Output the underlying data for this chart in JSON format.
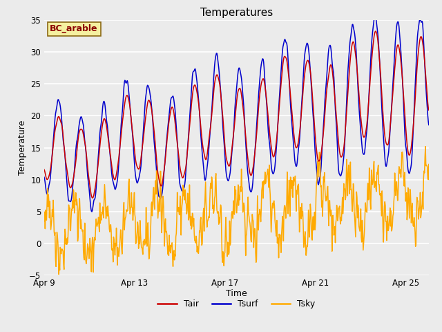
{
  "title": "Temperatures",
  "xlabel": "Time",
  "ylabel": "Temperature",
  "annotation_text": "BC_arable",
  "annotation_bg": "#f5f0a0",
  "annotation_border": "#8b6914",
  "annotation_text_color": "#8b0000",
  "ylim": [
    -5,
    35
  ],
  "xlim": [
    0,
    17
  ],
  "x_ticks_labels": [
    "Apr 9",
    "Apr 13",
    "Apr 17",
    "Apr 21",
    "Apr 25"
  ],
  "x_ticks_positions": [
    0,
    4,
    8,
    12,
    16
  ],
  "y_ticks": [
    -5,
    0,
    5,
    10,
    15,
    20,
    25,
    30,
    35
  ],
  "bg_color": "#ebebeb",
  "grid_color": "#ffffff",
  "tair_color": "#cc0000",
  "tsurf_color": "#0000cc",
  "tsky_color": "#ffaa00",
  "legend_entries": [
    "Tair",
    "Tsurf",
    "Tsky"
  ],
  "title_fontsize": 11,
  "axis_label_fontsize": 9,
  "tick_fontsize": 8.5
}
